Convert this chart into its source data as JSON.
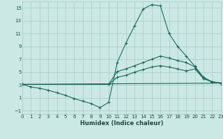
{
  "xlabel": "Humidex (Indice chaleur)",
  "bg_color": "#cce8e4",
  "grid_color": "#aacfcb",
  "line_color": "#1a6b5a",
  "xlim": [
    0,
    23
  ],
  "ylim": [
    -1.5,
    16
  ],
  "xticks": [
    0,
    1,
    2,
    3,
    4,
    5,
    6,
    7,
    8,
    9,
    10,
    11,
    12,
    13,
    14,
    15,
    16,
    17,
    18,
    19,
    20,
    21,
    22,
    23
  ],
  "yticks": [
    -1,
    1,
    3,
    5,
    7,
    9,
    11,
    13,
    15
  ],
  "lines": [
    {
      "x": [
        0,
        1,
        2,
        3,
        4,
        5,
        6,
        7,
        8,
        9,
        10,
        11,
        12,
        13,
        14,
        15,
        16,
        17,
        18,
        19,
        20,
        21,
        22,
        23
      ],
      "y": [
        3.1,
        2.7,
        2.5,
        2.2,
        1.8,
        1.4,
        0.9,
        0.5,
        0.1,
        -0.5,
        0.3,
        6.5,
        9.5,
        12.2,
        14.8,
        15.5,
        15.3,
        11.0,
        9.0,
        7.5,
        5.9,
        4.2,
        3.5,
        3.3
      ]
    },
    {
      "x": [
        0,
        10,
        11,
        12,
        13,
        14,
        15,
        16,
        17,
        18,
        19,
        20,
        21,
        22,
        23
      ],
      "y": [
        3.1,
        3.1,
        5.1,
        5.5,
        6.0,
        6.5,
        7.0,
        7.5,
        7.2,
        6.8,
        6.5,
        5.8,
        4.0,
        3.5,
        3.3
      ]
    },
    {
      "x": [
        0,
        10,
        11,
        12,
        13,
        14,
        15,
        16,
        17,
        18,
        19,
        20,
        21,
        22,
        23
      ],
      "y": [
        3.1,
        3.1,
        4.2,
        4.5,
        5.0,
        5.4,
        5.8,
        6.0,
        5.8,
        5.5,
        5.2,
        5.5,
        4.0,
        3.5,
        3.3
      ]
    },
    {
      "x": [
        0,
        23
      ],
      "y": [
        3.1,
        3.3
      ]
    }
  ]
}
